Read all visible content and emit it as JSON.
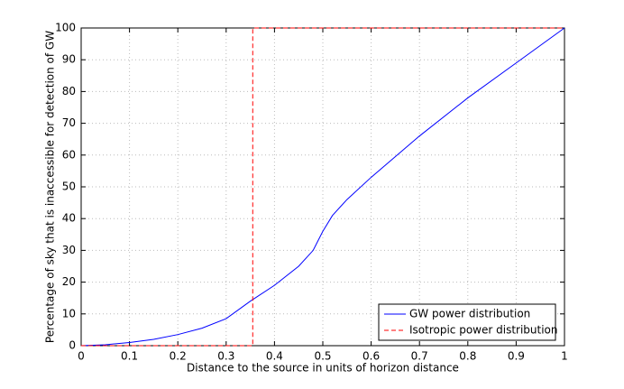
{
  "chart_data": {
    "type": "line",
    "xlabel": "Distance to the source in units of horizon distance",
    "ylabel": "Percentage of sky that is inaccessible for detection of GW",
    "xlim": [
      0,
      1
    ],
    "ylim": [
      0,
      100
    ],
    "xticks": [
      0,
      0.1,
      0.2,
      0.3,
      0.4,
      0.5,
      0.6,
      0.7,
      0.8,
      0.9,
      1
    ],
    "yticks": [
      0,
      10,
      20,
      30,
      40,
      50,
      60,
      70,
      80,
      90,
      100
    ],
    "grid": true,
    "legend": "lower right",
    "series": [
      {
        "name": "GW power distribution",
        "color": "#0000ff",
        "dash": false,
        "x": [
          0,
          0.05,
          0.1,
          0.15,
          0.2,
          0.25,
          0.3,
          0.35,
          0.4,
          0.45,
          0.48,
          0.5,
          0.52,
          0.55,
          0.6,
          0.7,
          0.8,
          0.9,
          1
        ],
        "values": [
          0,
          0.3,
          1,
          2,
          3.5,
          5.5,
          8.5,
          14,
          19,
          25,
          30,
          36,
          41,
          46,
          53,
          66,
          78,
          89,
          100
        ]
      },
      {
        "name": "Isotropic power distribution",
        "color": "#ff0000",
        "dash": true,
        "x": [
          0,
          0.355,
          0.355,
          1
        ],
        "values": [
          0,
          0,
          100,
          100
        ]
      }
    ]
  }
}
